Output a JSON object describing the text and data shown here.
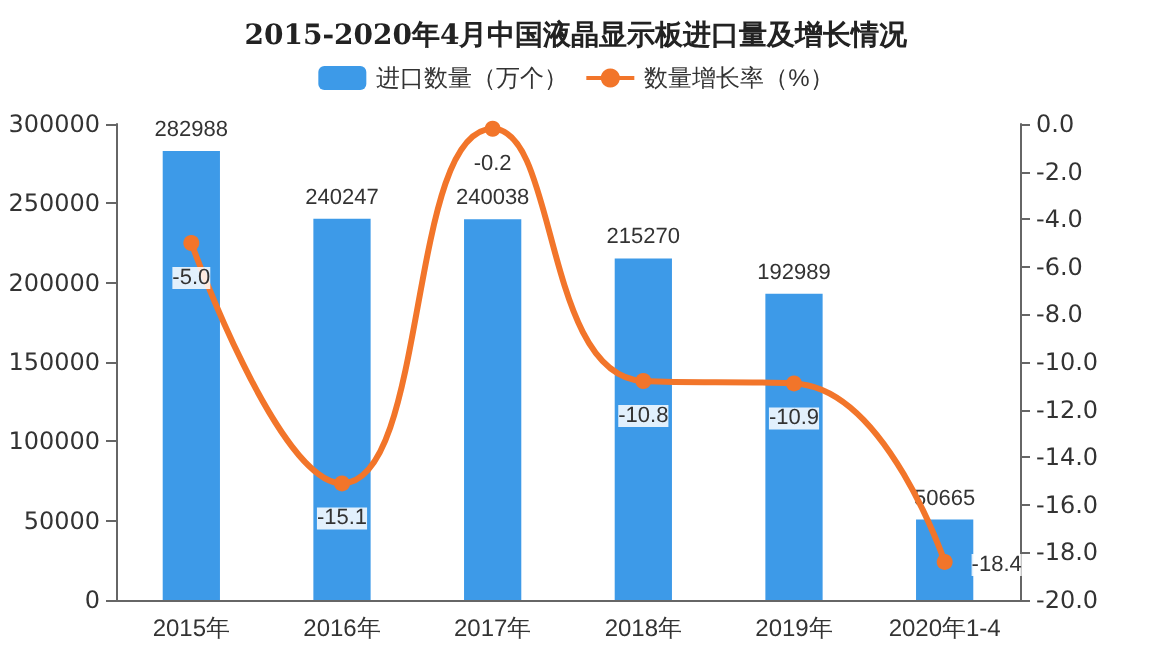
{
  "chart_data": {
    "type": "bar",
    "title": "2015-2020年4月中国液晶显示板进口量及增长情况",
    "categories": [
      "2015年",
      "2016年",
      "2017年",
      "2018年",
      "2019年",
      "2020年1-4"
    ],
    "series": [
      {
        "name": "进口数量（万个）",
        "color": "#3d9ae8",
        "values": [
          282988,
          240247,
          240038,
          215270,
          192989,
          50665
        ]
      },
      {
        "name": "数量增长率（%）",
        "type": "line",
        "axis": "y2",
        "color": "#f2752a",
        "marker": "circle",
        "values": [
          -5.0,
          -15.1,
          -0.2,
          -10.8,
          -10.9,
          -18.4
        ],
        "value_labels": [
          "-5.0",
          "-15.1",
          "-0.2",
          "-10.8",
          "-10.9",
          "-18.4"
        ]
      }
    ],
    "ylim": [
      0,
      300000
    ],
    "yticks": [
      0,
      50000,
      100000,
      150000,
      200000,
      250000,
      300000
    ],
    "y2lim": [
      -20,
      0
    ],
    "y2ticks": [
      {
        "value": 0,
        "label": "0.0"
      },
      {
        "value": -2,
        "label": "-2.0"
      },
      {
        "value": -4,
        "label": "-4.0"
      },
      {
        "value": -6,
        "label": "-6.0"
      },
      {
        "value": -8,
        "label": "-8.0"
      },
      {
        "value": -10,
        "label": "-10.0"
      },
      {
        "value": -12,
        "label": "-12.0"
      },
      {
        "value": -14,
        "label": "-14.0"
      },
      {
        "value": -16,
        "label": "-16.0"
      },
      {
        "value": -18,
        "label": "-18.0"
      },
      {
        "value": -20,
        "label": "-20.0"
      }
    ],
    "legend": "top",
    "data_labels": true
  }
}
